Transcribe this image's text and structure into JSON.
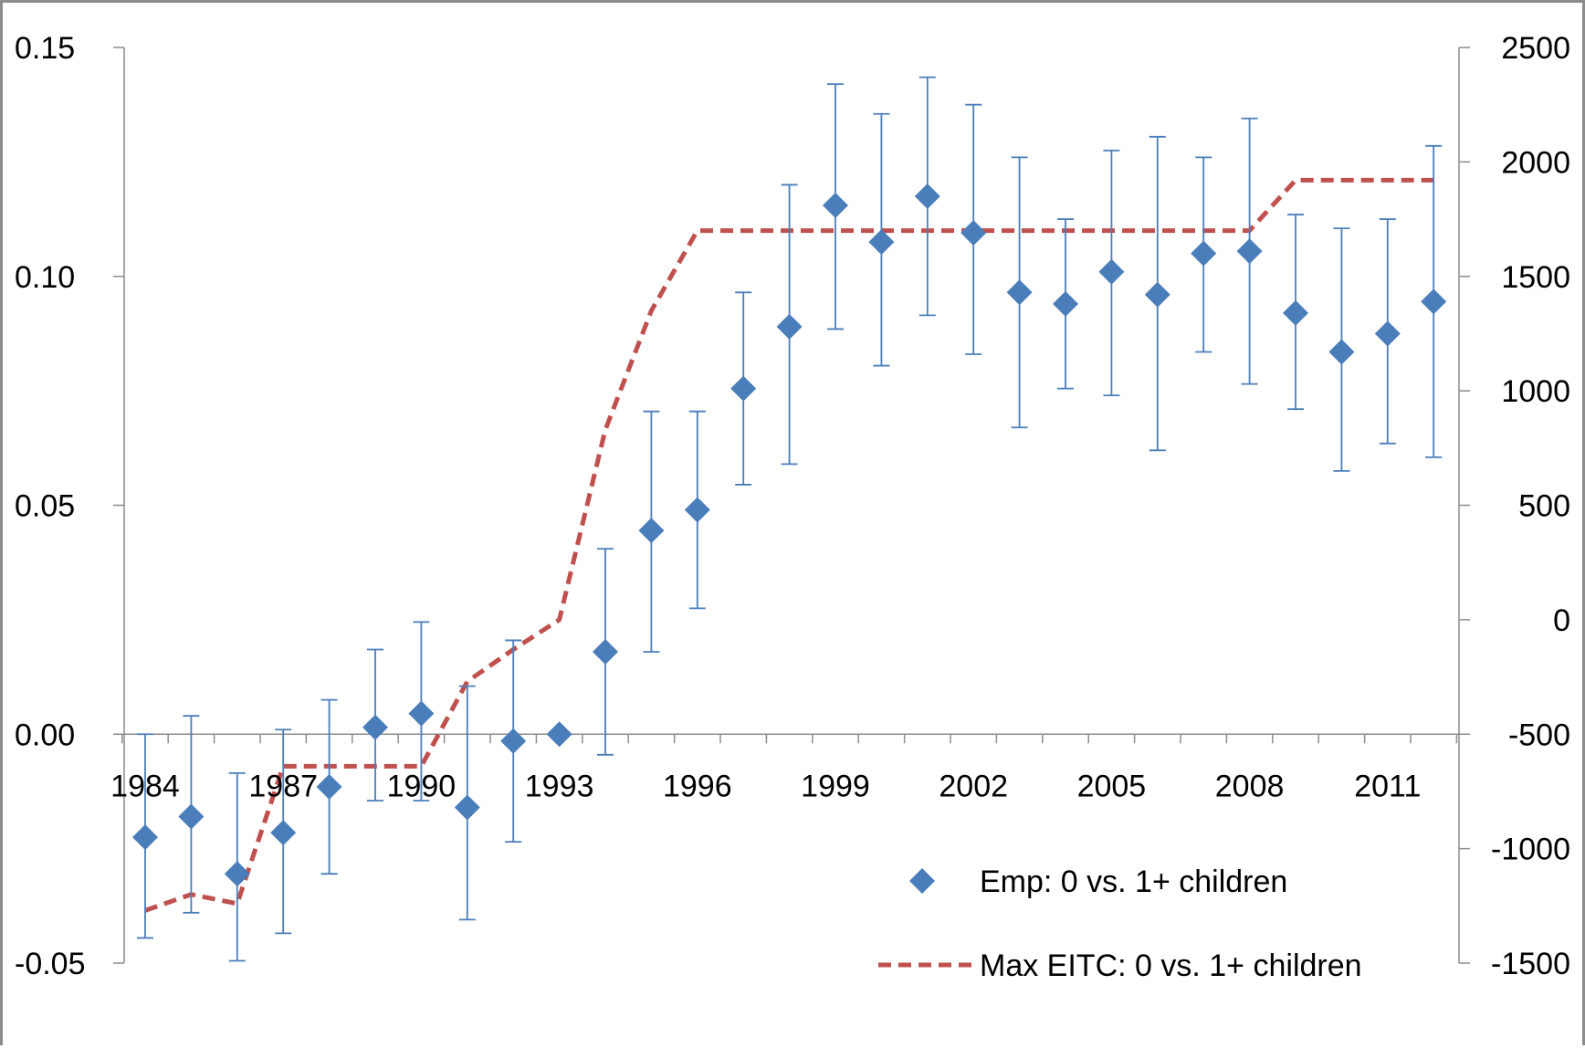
{
  "chart_data": {
    "type": "scatter",
    "title": "",
    "xlabel": "",
    "ylabel": "",
    "grid": false,
    "legend_placement": "bottom-right",
    "x_tick_labels": [
      "1984",
      "1987",
      "1990",
      "1993",
      "1996",
      "1999",
      "2002",
      "2005",
      "2008",
      "2011"
    ],
    "y_left_ticks": [
      "0.15",
      "0.10",
      "0.05",
      "0.00",
      "-0.05"
    ],
    "y_left_tick_values": [
      0.15,
      0.1,
      0.05,
      0.0,
      -0.05
    ],
    "y_right_ticks": [
      "2500",
      "2000",
      "1500",
      "1000",
      "500",
      "0",
      "-500",
      "-1000",
      "-1500"
    ],
    "y_right_tick_values": [
      2500,
      2000,
      1500,
      1000,
      500,
      0,
      -500,
      -1000,
      -1500
    ],
    "ylim_left": [
      -0.05,
      0.15
    ],
    "ylim_right": [
      -1500,
      2500
    ],
    "x": [
      1984,
      1985,
      1986,
      1987,
      1988,
      1989,
      1990,
      1991,
      1992,
      1993,
      1994,
      1995,
      1996,
      1997,
      1998,
      1999,
      2000,
      2001,
      2002,
      2003,
      2004,
      2005,
      2006,
      2007,
      2008,
      2009,
      2010,
      2011,
      2012
    ],
    "series": [
      {
        "name": "Emp: 0 vs. 1+ children",
        "marker": "diamond",
        "color": "#4a7ebb",
        "axis": "left",
        "values": [
          -0.0225,
          -0.018,
          -0.0305,
          -0.0215,
          -0.0115,
          0.0015,
          0.0045,
          -0.016,
          -0.0015,
          0.0,
          0.018,
          0.0445,
          0.049,
          0.0755,
          0.089,
          0.1155,
          0.1075,
          0.1175,
          0.1095,
          0.0965,
          0.094,
          0.101,
          0.096,
          0.105,
          0.1055,
          0.092,
          0.0835,
          0.0875,
          0.0945
        ],
        "error_low": [
          -0.0445,
          -0.039,
          -0.0495,
          -0.0435,
          -0.0305,
          -0.0145,
          -0.0145,
          -0.0405,
          -0.0235,
          0.0,
          -0.0045,
          0.018,
          0.0275,
          0.0545,
          0.059,
          0.0885,
          0.0805,
          0.0915,
          0.083,
          0.067,
          0.0755,
          0.074,
          0.062,
          0.0835,
          0.0765,
          0.071,
          0.0575,
          0.0635,
          0.0605
        ],
        "error_high": [
          0.0,
          0.004,
          -0.0085,
          0.001,
          0.0075,
          0.0185,
          0.0245,
          0.0105,
          0.0205,
          0.0,
          0.0405,
          0.0705,
          0.0705,
          0.0965,
          0.12,
          0.142,
          0.1355,
          0.1435,
          0.1375,
          0.126,
          0.1125,
          0.1275,
          0.1305,
          0.126,
          0.1345,
          0.1135,
          0.1105,
          0.1125,
          0.1285
        ]
      },
      {
        "name": "Max EITC: 0 vs. 1+ children",
        "line_style": "dashed",
        "color": "#c0504d",
        "axis": "right",
        "values": [
          -1270,
          -1200,
          -1240,
          -640,
          -640,
          -640,
          -640,
          -270,
          -130,
          0,
          830,
          1350,
          1700,
          1700,
          1700,
          1700,
          1700,
          1700,
          1700,
          1700,
          1700,
          1700,
          1700,
          1700,
          1700,
          1920,
          1920,
          1920,
          1920
        ]
      }
    ]
  }
}
